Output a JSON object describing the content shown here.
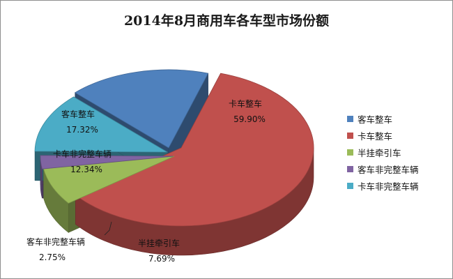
{
  "chart_data": {
    "type": "pie",
    "title": "2014年8月商用车各车型市场份额",
    "slices": [
      {
        "name": "客车整车",
        "value": 17.32,
        "value_label": "17.32%",
        "color": "#4f81bd"
      },
      {
        "name": "卡车整车",
        "value": 59.9,
        "value_label": "59.90%",
        "color": "#c0504d"
      },
      {
        "name": "半挂牵引车",
        "value": 7.69,
        "value_label": "7.69%",
        "color": "#9bbb59"
      },
      {
        "name": "客车非完整车辆",
        "value": 2.75,
        "value_label": "2.75%",
        "color": "#8064a2"
      },
      {
        "name": "卡车非完整车辆",
        "value": 12.34,
        "value_label": "12.34%",
        "color": "#4bacc6"
      }
    ],
    "legend_position": "right",
    "style": "3d-exploded"
  }
}
